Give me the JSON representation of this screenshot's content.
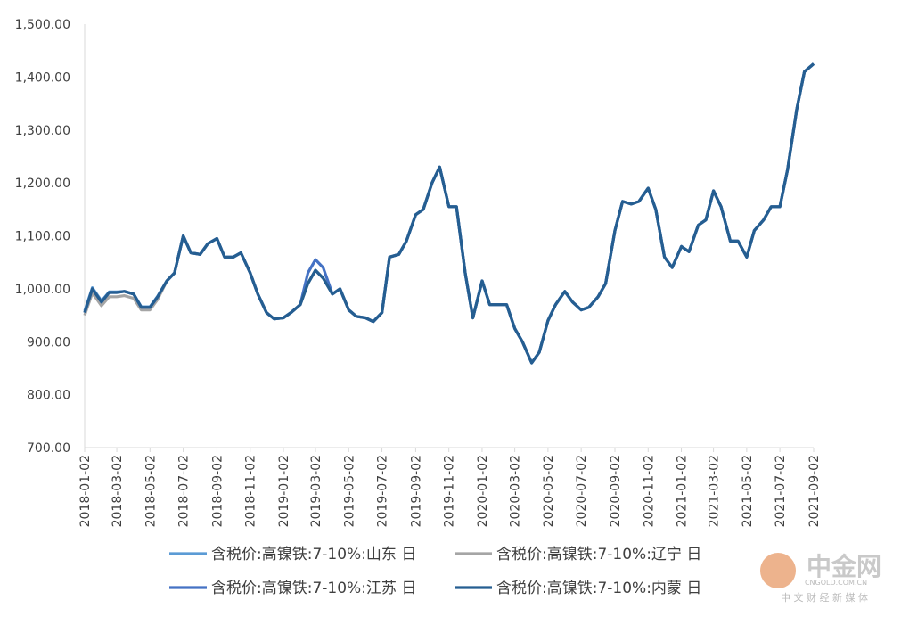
{
  "chart_data": {
    "type": "line",
    "x": [
      "2018-01-02",
      "2018-01-16",
      "2018-02-02",
      "2018-02-16",
      "2018-03-02",
      "2018-03-16",
      "2018-04-02",
      "2018-04-16",
      "2018-05-02",
      "2018-05-16",
      "2018-06-02",
      "2018-06-16",
      "2018-07-02",
      "2018-07-16",
      "2018-08-02",
      "2018-08-16",
      "2018-09-02",
      "2018-09-16",
      "2018-10-02",
      "2018-10-16",
      "2018-11-02",
      "2018-11-16",
      "2018-12-02",
      "2018-12-16",
      "2019-01-02",
      "2019-01-16",
      "2019-02-02",
      "2019-02-16",
      "2019-03-02",
      "2019-03-16",
      "2019-04-02",
      "2019-04-16",
      "2019-05-02",
      "2019-05-16",
      "2019-06-02",
      "2019-06-16",
      "2019-07-02",
      "2019-07-16",
      "2019-08-02",
      "2019-08-16",
      "2019-09-02",
      "2019-09-16",
      "2019-10-02",
      "2019-10-16",
      "2019-11-02",
      "2019-11-16",
      "2019-12-02",
      "2019-12-16",
      "2020-01-02",
      "2020-01-16",
      "2020-02-02",
      "2020-02-16",
      "2020-03-02",
      "2020-03-16",
      "2020-04-02",
      "2020-04-16",
      "2020-05-02",
      "2020-05-16",
      "2020-06-02",
      "2020-06-16",
      "2020-07-02",
      "2020-07-16",
      "2020-08-02",
      "2020-08-16",
      "2020-09-02",
      "2020-09-16",
      "2020-10-02",
      "2020-10-16",
      "2020-11-02",
      "2020-11-16",
      "2020-12-02",
      "2020-12-16",
      "2021-01-02",
      "2021-01-16",
      "2021-02-02",
      "2021-02-16",
      "2021-03-02",
      "2021-03-16",
      "2021-04-02",
      "2021-04-16",
      "2021-05-02",
      "2021-05-16",
      "2021-06-02",
      "2021-06-16",
      "2021-07-02",
      "2021-07-16",
      "2021-08-02",
      "2021-08-16",
      "2021-09-02"
    ],
    "xlim": [
      "2018-01-02",
      "2021-09-02"
    ],
    "xticks": [
      "2018-01-02",
      "2018-03-02",
      "2018-05-02",
      "2018-07-02",
      "2018-09-02",
      "2018-11-02",
      "2019-01-02",
      "2019-03-02",
      "2019-05-02",
      "2019-07-02",
      "2019-09-02",
      "2019-11-02",
      "2020-01-02",
      "2020-03-02",
      "2020-05-02",
      "2020-07-02",
      "2020-09-02",
      "2020-11-02",
      "2021-01-02",
      "2021-03-02",
      "2021-05-02",
      "2021-07-02",
      "2021-09-02"
    ],
    "ylim": [
      700,
      1500
    ],
    "yticks": [
      {
        "value": 700,
        "label": "700.00"
      },
      {
        "value": 800,
        "label": "800.00"
      },
      {
        "value": 900,
        "label": "900.00"
      },
      {
        "value": 1000,
        "label": "1,000.00"
      },
      {
        "value": 1100,
        "label": "1,100.00"
      },
      {
        "value": 1200,
        "label": "1,200.00"
      },
      {
        "value": 1300,
        "label": "1,300.00"
      },
      {
        "value": 1400,
        "label": "1,400.00"
      },
      {
        "value": 1500,
        "label": "1,500.00"
      }
    ],
    "grid": false,
    "series": [
      {
        "name": "含税价:高镍铁:7-10%:山东 日",
        "color": "#5b9bd5",
        "values": [
          958,
          1002,
          977,
          994,
          994,
          995,
          990,
          966,
          966,
          986,
          1015,
          1030,
          1100,
          1068,
          1065,
          1085,
          1095,
          1060,
          1060,
          1068,
          1030,
          990,
          955,
          943,
          945,
          955,
          970,
          1010,
          1035,
          1020,
          990,
          1000,
          960,
          948,
          945,
          938,
          955,
          1060,
          1065,
          1090,
          1140,
          1150,
          1200,
          1230,
          1155,
          1155,
          1030,
          945,
          1015,
          970,
          970,
          970,
          925,
          900,
          860,
          880,
          940,
          970,
          995,
          975,
          960,
          965,
          985,
          1010,
          1110,
          1165,
          1160,
          1165,
          1190,
          1150,
          1060,
          1040,
          1080,
          1070,
          1120,
          1130,
          1185,
          1155,
          1090,
          1090,
          1060,
          1110,
          1130,
          1155,
          1155,
          1225,
          1340,
          1410,
          1425
        ]
      },
      {
        "name": "含税价:高镍铁:7-10%:辽宁 日",
        "color": "#a5a5a5",
        "values": [
          950,
          992,
          968,
          985,
          985,
          987,
          982,
          960,
          960,
          980,
          1015,
          1030,
          1100,
          1068,
          1065,
          1085,
          1095,
          1060,
          1060,
          1068,
          1030,
          990,
          955,
          943,
          945,
          955,
          970,
          1010,
          1035,
          1020,
          990,
          1000,
          960,
          948,
          945,
          938,
          955,
          1060,
          1065,
          1090,
          1140,
          1150,
          1200,
          1230,
          1155,
          1155,
          1030,
          945,
          1015,
          970,
          970,
          970,
          925,
          900,
          860,
          880,
          940,
          970,
          995,
          975,
          960,
          965,
          985,
          1010,
          1110,
          1165,
          1160,
          1165,
          1190,
          1150,
          1060,
          1040,
          1080,
          1070,
          1120,
          1130,
          1185,
          1155,
          1090,
          1090,
          1060,
          1110,
          1130,
          1155,
          1155,
          1225,
          1340,
          1410,
          1425
        ]
      },
      {
        "name": "含税价:高镍铁:7-10%:江苏 日",
        "color": "#4472c4",
        "values": [
          955,
          1000,
          975,
          993,
          993,
          995,
          990,
          965,
          965,
          985,
          1015,
          1030,
          1100,
          1068,
          1065,
          1085,
          1095,
          1060,
          1060,
          1068,
          1030,
          990,
          955,
          943,
          945,
          955,
          970,
          1030,
          1055,
          1040,
          990,
          1000,
          960,
          948,
          945,
          938,
          955,
          1060,
          1065,
          1090,
          1140,
          1150,
          1200,
          1230,
          1155,
          1155,
          1030,
          945,
          1015,
          970,
          970,
          970,
          925,
          900,
          860,
          880,
          940,
          970,
          995,
          975,
          960,
          965,
          985,
          1010,
          1110,
          1165,
          1160,
          1165,
          1190,
          1150,
          1060,
          1040,
          1080,
          1070,
          1120,
          1130,
          1185,
          1155,
          1090,
          1090,
          1060,
          1110,
          1130,
          1155,
          1155,
          1225,
          1340,
          1410,
          1425
        ]
      },
      {
        "name": "含税价:高镍铁:7-10%:内蒙 日",
        "color": "#255e91",
        "values": [
          955,
          1000,
          975,
          993,
          993,
          995,
          990,
          965,
          965,
          985,
          1015,
          1030,
          1100,
          1068,
          1065,
          1085,
          1095,
          1060,
          1060,
          1068,
          1030,
          990,
          955,
          943,
          945,
          955,
          970,
          1010,
          1035,
          1020,
          990,
          1000,
          960,
          948,
          945,
          938,
          955,
          1060,
          1065,
          1090,
          1140,
          1150,
          1200,
          1230,
          1155,
          1155,
          1030,
          945,
          1015,
          970,
          970,
          970,
          925,
          900,
          860,
          880,
          940,
          970,
          995,
          975,
          960,
          965,
          985,
          1010,
          1110,
          1165,
          1160,
          1165,
          1190,
          1150,
          1060,
          1040,
          1080,
          1070,
          1120,
          1130,
          1185,
          1155,
          1090,
          1090,
          1060,
          1110,
          1130,
          1155,
          1155,
          1225,
          1340,
          1410,
          1425
        ]
      }
    ]
  },
  "watermark": {
    "brand": "中金网",
    "domain": "CNGOLD.COM.CN",
    "slogan": "中 文 财 经 新 媒 体"
  }
}
